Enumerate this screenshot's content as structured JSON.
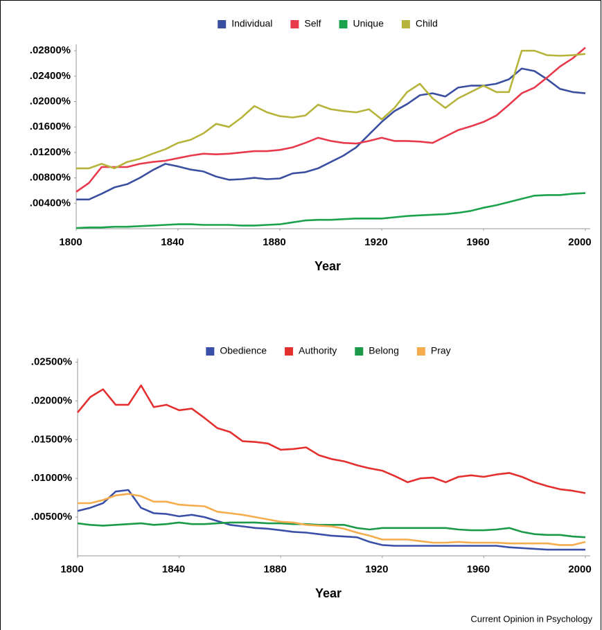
{
  "chart_data": [
    {
      "type": "line",
      "xlabel": "Year",
      "legend": "top",
      "x": [
        1800,
        1805,
        1810,
        1815,
        1820,
        1825,
        1830,
        1835,
        1840,
        1845,
        1850,
        1855,
        1860,
        1865,
        1870,
        1875,
        1880,
        1885,
        1890,
        1895,
        1900,
        1905,
        1910,
        1915,
        1920,
        1925,
        1930,
        1935,
        1940,
        1945,
        1950,
        1955,
        1960,
        1965,
        1970,
        1975,
        1980,
        1985,
        1990,
        1995,
        2000
      ],
      "xlim": [
        1800,
        2003
      ],
      "xticks": [
        1800,
        1840,
        1880,
        1920,
        1960,
        2000
      ],
      "ylim": [
        0,
        0.029
      ],
      "yticks": [
        {
          "value": 0.004,
          "label": ".00400%"
        },
        {
          "value": 0.008,
          "label": ".00800%"
        },
        {
          "value": 0.012,
          "label": ".01200%"
        },
        {
          "value": 0.016,
          "label": ".01600%"
        },
        {
          "value": 0.02,
          "label": ".02000%"
        },
        {
          "value": 0.024,
          "label": ".02400%"
        },
        {
          "value": 0.028,
          "label": ".02800%"
        }
      ],
      "series": [
        {
          "name": "Individual",
          "color": "#3a4f9f",
          "values": [
            0.0046,
            0.0046,
            0.0055,
            0.0065,
            0.007,
            0.008,
            0.0092,
            0.0102,
            0.0098,
            0.0093,
            0.009,
            0.0082,
            0.0077,
            0.0078,
            0.008,
            0.0078,
            0.0079,
            0.0087,
            0.0089,
            0.0095,
            0.0105,
            0.0115,
            0.0128,
            0.0148,
            0.0168,
            0.0185,
            0.0196,
            0.021,
            0.0213,
            0.0208,
            0.0222,
            0.0225,
            0.0225,
            0.0228,
            0.0235,
            0.0252,
            0.0248,
            0.0235,
            0.022,
            0.0215,
            0.0213
          ]
        },
        {
          "name": "Self",
          "color": "#e8394d",
          "values": [
            0.0058,
            0.0072,
            0.0097,
            0.0097,
            0.0097,
            0.0102,
            0.0105,
            0.0107,
            0.0111,
            0.0115,
            0.0118,
            0.0117,
            0.0118,
            0.012,
            0.0122,
            0.0122,
            0.0124,
            0.0128,
            0.0135,
            0.0143,
            0.0138,
            0.0135,
            0.0134,
            0.0138,
            0.0143,
            0.0138,
            0.0138,
            0.0137,
            0.0135,
            0.0145,
            0.0155,
            0.0161,
            0.0168,
            0.0178,
            0.0195,
            0.0213,
            0.0222,
            0.0238,
            0.0255,
            0.0268,
            0.0285
          ]
        },
        {
          "name": "Unique",
          "color": "#1ba24c",
          "values": [
            0.0001,
            0.0002,
            0.0002,
            0.0003,
            0.0003,
            0.0004,
            0.0005,
            0.0006,
            0.0007,
            0.0007,
            0.0006,
            0.0006,
            0.0006,
            0.0005,
            0.0005,
            0.0006,
            0.0007,
            0.001,
            0.0013,
            0.0014,
            0.0014,
            0.0015,
            0.0016,
            0.0016,
            0.0016,
            0.0018,
            0.002,
            0.0021,
            0.0022,
            0.0023,
            0.0025,
            0.0028,
            0.0033,
            0.0037,
            0.0042,
            0.0047,
            0.0052,
            0.0053,
            0.0053,
            0.0055,
            0.0056
          ]
        },
        {
          "name": "Child",
          "color": "#b6b43b",
          "values": [
            0.0095,
            0.0095,
            0.0102,
            0.0095,
            0.0105,
            0.011,
            0.0118,
            0.0125,
            0.0135,
            0.014,
            0.015,
            0.0165,
            0.016,
            0.0175,
            0.0193,
            0.0183,
            0.0177,
            0.0175,
            0.0178,
            0.0195,
            0.0188,
            0.0185,
            0.0183,
            0.0188,
            0.0172,
            0.019,
            0.0215,
            0.0228,
            0.0205,
            0.019,
            0.0205,
            0.0215,
            0.0225,
            0.0215,
            0.0215,
            0.028,
            0.028,
            0.0273,
            0.0272,
            0.0273,
            0.0275
          ]
        }
      ]
    },
    {
      "type": "line",
      "xlabel": "Year",
      "legend": "top",
      "x": [
        1800,
        1805,
        1810,
        1815,
        1820,
        1825,
        1830,
        1835,
        1840,
        1845,
        1850,
        1855,
        1860,
        1865,
        1870,
        1875,
        1880,
        1885,
        1890,
        1895,
        1900,
        1905,
        1910,
        1915,
        1920,
        1925,
        1930,
        1935,
        1940,
        1945,
        1950,
        1955,
        1960,
        1965,
        1970,
        1975,
        1980,
        1985,
        1990,
        1995,
        2000
      ],
      "xlim": [
        1800,
        2003
      ],
      "xticks": [
        1800,
        1840,
        1880,
        1920,
        1960,
        2000
      ],
      "ylim": [
        0,
        0.0255
      ],
      "yticks": [
        {
          "value": 0.005,
          "label": ".00500%"
        },
        {
          "value": 0.01,
          "label": ".01000%"
        },
        {
          "value": 0.015,
          "label": ".01500%"
        },
        {
          "value": 0.02,
          "label": ".02000%"
        },
        {
          "value": 0.025,
          "label": ".02500%"
        }
      ],
      "series": [
        {
          "name": "Obedience",
          "color": "#3a50a8",
          "values": [
            0.0058,
            0.0062,
            0.0068,
            0.0083,
            0.0085,
            0.0062,
            0.0055,
            0.0054,
            0.0051,
            0.0053,
            0.005,
            0.0045,
            0.004,
            0.0038,
            0.0036,
            0.0035,
            0.0033,
            0.0031,
            0.003,
            0.0028,
            0.0026,
            0.0025,
            0.0024,
            0.0018,
            0.0014,
            0.0013,
            0.0013,
            0.0013,
            0.0013,
            0.0013,
            0.0013,
            0.0013,
            0.0013,
            0.0013,
            0.0011,
            0.001,
            0.0009,
            0.0008,
            0.0008,
            0.0008,
            0.0008
          ]
        },
        {
          "name": "Authority",
          "color": "#e3302f",
          "values": [
            0.0185,
            0.0205,
            0.0215,
            0.0195,
            0.0195,
            0.022,
            0.0192,
            0.0195,
            0.0188,
            0.019,
            0.0178,
            0.0165,
            0.016,
            0.0148,
            0.0147,
            0.0145,
            0.0137,
            0.0138,
            0.014,
            0.013,
            0.0125,
            0.0122,
            0.0117,
            0.0113,
            0.011,
            0.0103,
            0.0095,
            0.01,
            0.0101,
            0.0095,
            0.0102,
            0.0104,
            0.0102,
            0.0105,
            0.0107,
            0.0102,
            0.0095,
            0.009,
            0.0086,
            0.0084,
            0.0081
          ]
        },
        {
          "name": "Belong",
          "color": "#1c9a4a",
          "values": [
            0.0042,
            0.004,
            0.0039,
            0.004,
            0.0041,
            0.0042,
            0.004,
            0.0041,
            0.0043,
            0.0041,
            0.0041,
            0.0042,
            0.0043,
            0.0043,
            0.0043,
            0.0042,
            0.0042,
            0.0041,
            0.0041,
            0.004,
            0.004,
            0.004,
            0.0036,
            0.0034,
            0.0036,
            0.0036,
            0.0036,
            0.0036,
            0.0036,
            0.0036,
            0.0034,
            0.0033,
            0.0033,
            0.0034,
            0.0036,
            0.0031,
            0.0028,
            0.0027,
            0.0027,
            0.0025,
            0.0024
          ]
        },
        {
          "name": "Pray",
          "color": "#f5ac4c",
          "values": [
            0.0068,
            0.0068,
            0.0072,
            0.0078,
            0.008,
            0.0077,
            0.007,
            0.007,
            0.0066,
            0.0065,
            0.0064,
            0.0057,
            0.0055,
            0.0053,
            0.005,
            0.0047,
            0.0044,
            0.0043,
            0.004,
            0.0039,
            0.0038,
            0.0035,
            0.003,
            0.0026,
            0.0021,
            0.0021,
            0.0021,
            0.0019,
            0.0017,
            0.0017,
            0.0018,
            0.0017,
            0.0017,
            0.0017,
            0.0016,
            0.0016,
            0.0016,
            0.0016,
            0.0014,
            0.0014,
            0.0018
          ]
        }
      ]
    }
  ],
  "credit": "Current Opinion in Psychology"
}
